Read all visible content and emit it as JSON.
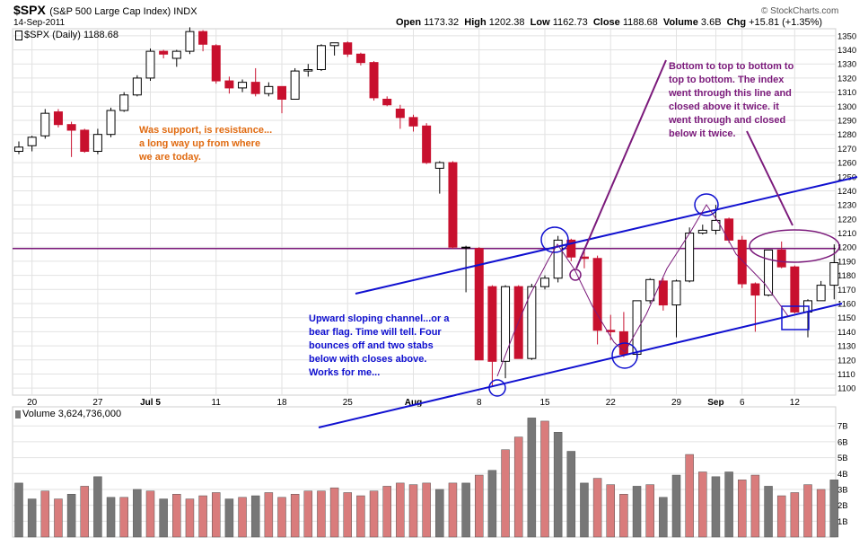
{
  "header": {
    "symbol": "$SPX",
    "name": "(S&P 500 Large Cap Index) INDX",
    "date": "14-Sep-2011",
    "open_label": "Open",
    "open": "1173.32",
    "high_label": "High",
    "high": "1202.38",
    "low_label": "Low",
    "low": "1162.73",
    "close_label": "Close",
    "close": "1188.68",
    "volume_label": "Volume",
    "volume": "3.6B",
    "chg_label": "Chg",
    "chg": "+15.81 (+1.35%)",
    "copyright": "© StockCharts.com"
  },
  "colors": {
    "up": "#ffffff",
    "down": "#c8102e",
    "volume_up": "#777777",
    "volume_down": "#d97c7c",
    "annotation_blue": "#1010d0",
    "annotation_purple": "#7b1a7b",
    "annotation_orange": "#e06a10",
    "grid": "#e2e2e2"
  },
  "annotations": {
    "orange_text": "Was support, is resistance...\na long way up from where\nwe are today.",
    "blue_text": "Upward sloping channel...or a\nbear flag.  Time will tell. Four\nbounces off and two stabs\nbelow with closes above.\nWorks for me...",
    "purple_text": "Bottom to top to bottom to\ntop to bottom. The index\nwent through this line and\nclosed above it  twice. it\nwent through and closed\nbelow it twice."
  },
  "chart_data": [
    {
      "type": "candlestick",
      "legend": "$SPX (Daily) 1188.68",
      "ylim": [
        1095,
        1355
      ],
      "y_ticks": [
        1100,
        1110,
        1120,
        1130,
        1140,
        1150,
        1160,
        1170,
        1180,
        1190,
        1200,
        1210,
        1220,
        1230,
        1240,
        1250,
        1260,
        1270,
        1280,
        1290,
        1300,
        1310,
        1320,
        1330,
        1340,
        1350
      ],
      "x_tick_labels": [
        {
          "label": "20",
          "index": 1
        },
        {
          "label": "27",
          "index": 6
        },
        {
          "label": "Jul 5",
          "index": 10
        },
        {
          "label": "11",
          "index": 15
        },
        {
          "label": "18",
          "index": 20
        },
        {
          "label": "25",
          "index": 25
        },
        {
          "label": "Aug",
          "index": 30
        },
        {
          "label": "8",
          "index": 35
        },
        {
          "label": "15",
          "index": 40
        },
        {
          "label": "22",
          "index": 45
        },
        {
          "label": "29",
          "index": 50
        },
        {
          "label": "Sep",
          "index": 53
        },
        {
          "label": "6",
          "index": 55
        },
        {
          "label": "12",
          "index": 59
        }
      ],
      "horizontal_line": 1199,
      "candles": [
        {
          "o": 1268,
          "h": 1275,
          "l": 1266,
          "c": 1271
        },
        {
          "o": 1272,
          "h": 1279,
          "l": 1268,
          "c": 1278
        },
        {
          "o": 1279,
          "h": 1298,
          "l": 1277,
          "c": 1295
        },
        {
          "o": 1296,
          "h": 1298,
          "l": 1285,
          "c": 1287
        },
        {
          "o": 1287,
          "h": 1289,
          "l": 1264,
          "c": 1283
        },
        {
          "o": 1283,
          "h": 1284,
          "l": 1267,
          "c": 1268
        },
        {
          "o": 1268,
          "h": 1284,
          "l": 1266,
          "c": 1280
        },
        {
          "o": 1280,
          "h": 1299,
          "l": 1278,
          "c": 1297
        },
        {
          "o": 1297,
          "h": 1310,
          "l": 1296,
          "c": 1308
        },
        {
          "o": 1308,
          "h": 1322,
          "l": 1307,
          "c": 1320
        },
        {
          "o": 1320,
          "h": 1341,
          "l": 1318,
          "c": 1339
        },
        {
          "o": 1339,
          "h": 1340,
          "l": 1334,
          "c": 1337
        },
        {
          "o": 1334,
          "h": 1340,
          "l": 1328,
          "c": 1339
        },
        {
          "o": 1339,
          "h": 1356,
          "l": 1337,
          "c": 1353
        },
        {
          "o": 1353,
          "h": 1354,
          "l": 1339,
          "c": 1344
        },
        {
          "o": 1343,
          "h": 1344,
          "l": 1316,
          "c": 1318
        },
        {
          "o": 1318,
          "h": 1321,
          "l": 1309,
          "c": 1313
        },
        {
          "o": 1313,
          "h": 1319,
          "l": 1310,
          "c": 1317
        },
        {
          "o": 1317,
          "h": 1327,
          "l": 1307,
          "c": 1309
        },
        {
          "o": 1309,
          "h": 1317,
          "l": 1307,
          "c": 1314
        },
        {
          "o": 1314,
          "h": 1314,
          "l": 1295,
          "c": 1305
        },
        {
          "o": 1305,
          "h": 1327,
          "l": 1305,
          "c": 1325
        },
        {
          "o": 1325,
          "h": 1330,
          "l": 1321,
          "c": 1326
        },
        {
          "o": 1326,
          "h": 1344,
          "l": 1325,
          "c": 1343
        },
        {
          "o": 1343,
          "h": 1345,
          "l": 1336,
          "c": 1345
        },
        {
          "o": 1345,
          "h": 1346,
          "l": 1335,
          "c": 1337
        },
        {
          "o": 1337,
          "h": 1338,
          "l": 1329,
          "c": 1331
        },
        {
          "o": 1331,
          "h": 1332,
          "l": 1304,
          "c": 1306
        },
        {
          "o": 1305,
          "h": 1307,
          "l": 1300,
          "c": 1301
        },
        {
          "o": 1298,
          "h": 1301,
          "l": 1284,
          "c": 1292
        },
        {
          "o": 1292,
          "h": 1294,
          "l": 1282,
          "c": 1286
        },
        {
          "o": 1286,
          "h": 1288,
          "l": 1259,
          "c": 1260
        },
        {
          "o": 1256,
          "h": 1261,
          "l": 1238,
          "c": 1260
        },
        {
          "o": 1260,
          "h": 1261,
          "l": 1199,
          "c": 1200
        },
        {
          "o": 1200,
          "h": 1201,
          "l": 1168,
          "c": 1200
        },
        {
          "o": 1199,
          "h": 1200,
          "l": 1120,
          "c": 1120
        },
        {
          "o": 1172,
          "h": 1173,
          "l": 1101,
          "c": 1119
        },
        {
          "o": 1119,
          "h": 1173,
          "l": 1107,
          "c": 1172
        },
        {
          "o": 1172,
          "h": 1173,
          "l": 1121,
          "c": 1121
        },
        {
          "o": 1121,
          "h": 1174,
          "l": 1120,
          "c": 1172
        },
        {
          "o": 1172,
          "h": 1180,
          "l": 1170,
          "c": 1178
        },
        {
          "o": 1178,
          "h": 1208,
          "l": 1175,
          "c": 1205
        },
        {
          "o": 1205,
          "h": 1206,
          "l": 1190,
          "c": 1193
        },
        {
          "o": 1193,
          "h": 1198,
          "l": 1185,
          "c": 1192
        },
        {
          "o": 1192,
          "h": 1194,
          "l": 1131,
          "c": 1141
        },
        {
          "o": 1141,
          "h": 1152,
          "l": 1134,
          "c": 1140
        },
        {
          "o": 1140,
          "h": 1154,
          "l": 1122,
          "c": 1124
        },
        {
          "o": 1124,
          "h": 1162,
          "l": 1122,
          "c": 1162
        },
        {
          "o": 1162,
          "h": 1178,
          "l": 1160,
          "c": 1177
        },
        {
          "o": 1176,
          "h": 1178,
          "l": 1155,
          "c": 1159
        },
        {
          "o": 1159,
          "h": 1177,
          "l": 1136,
          "c": 1176
        },
        {
          "o": 1176,
          "h": 1214,
          "l": 1175,
          "c": 1210
        },
        {
          "o": 1210,
          "h": 1216,
          "l": 1209,
          "c": 1212
        },
        {
          "o": 1212,
          "h": 1230,
          "l": 1209,
          "c": 1219
        },
        {
          "o": 1220,
          "h": 1221,
          "l": 1203,
          "c": 1205
        },
        {
          "o": 1205,
          "h": 1208,
          "l": 1171,
          "c": 1174
        },
        {
          "o": 1174,
          "h": 1175,
          "l": 1140,
          "c": 1166
        },
        {
          "o": 1166,
          "h": 1198,
          "l": 1165,
          "c": 1198
        },
        {
          "o": 1198,
          "h": 1204,
          "l": 1185,
          "c": 1186
        },
        {
          "o": 1186,
          "h": 1187,
          "l": 1153,
          "c": 1154
        },
        {
          "o": 1154,
          "h": 1163,
          "l": 1136,
          "c": 1162
        },
        {
          "o": 1162,
          "h": 1176,
          "l": 1162,
          "c": 1173
        },
        {
          "o": 1173,
          "h": 1202,
          "l": 1163,
          "c": 1189
        }
      ]
    },
    {
      "type": "bar",
      "legend": "Volume 3,624,736,000",
      "ylim": [
        0,
        8.2
      ],
      "y_tick_labels": [
        "1B",
        "2B",
        "3B",
        "4B",
        "5B",
        "6B",
        "7B"
      ],
      "y_tick_values": [
        1,
        2,
        3,
        4,
        5,
        6,
        7
      ],
      "values": [
        3.4,
        2.4,
        2.9,
        2.4,
        2.7,
        3.2,
        3.8,
        2.5,
        2.5,
        3.0,
        2.9,
        2.4,
        2.7,
        2.4,
        2.6,
        2.8,
        2.4,
        2.5,
        2.6,
        2.8,
        2.5,
        2.7,
        2.9,
        2.9,
        3.1,
        2.8,
        2.6,
        2.9,
        3.2,
        3.4,
        3.3,
        3.4,
        3.0,
        3.4,
        3.4,
        3.9,
        4.2,
        5.5,
        6.3,
        7.5,
        7.3,
        6.6,
        5.4,
        3.4,
        3.7,
        3.3,
        2.7,
        3.2,
        3.3,
        2.5,
        3.9,
        5.2,
        4.1,
        3.8,
        4.1,
        3.6,
        3.9,
        3.2,
        2.6,
        2.8,
        3.3,
        3.0,
        3.6
      ],
      "down_days": [
        2,
        3,
        5,
        8,
        10,
        12,
        13,
        14,
        15,
        17,
        19,
        20,
        21,
        22,
        23,
        24,
        25,
        26,
        27,
        28,
        29,
        30,
        31,
        33,
        35,
        37,
        38,
        40,
        44,
        45,
        46,
        48,
        51,
        52,
        55,
        56,
        58,
        59,
        60,
        61
      ]
    }
  ]
}
